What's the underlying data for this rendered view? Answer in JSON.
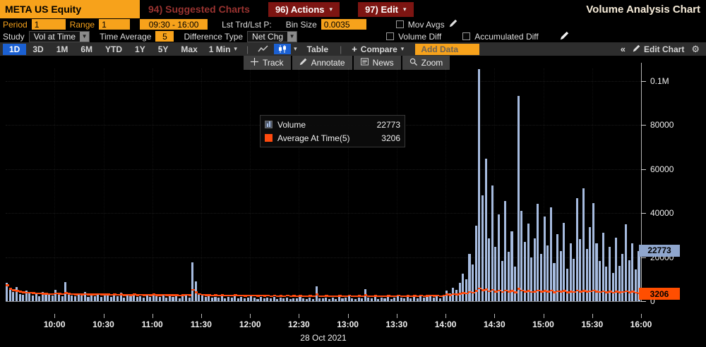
{
  "titlebar": {
    "security": "META US Equity",
    "suggested": "94) Suggested Charts",
    "actions": "96) Actions",
    "edit": "97) Edit",
    "title": "Volume Analysis Chart"
  },
  "controls": {
    "period_label": "Period",
    "period_value": "1",
    "range_label": "Range",
    "range_value": "1",
    "time_range": "09:30 - 16:00",
    "lst_trd_label": "Lst Trd/Lst P:",
    "bin_size_label": "Bin Size",
    "bin_size_value": "0.0035",
    "mov_avgs_label": "Mov Avgs",
    "study_label": "Study",
    "study_value": "Vol at Time",
    "time_average_label": "Time Average",
    "time_average_value": "5",
    "difference_type_label": "Difference Type",
    "difference_type_value": "Net Chg",
    "volume_diff_label": "Volume Diff",
    "accumulated_diff_label": "Accumulated Diff"
  },
  "tabbar": {
    "tabs": [
      "1D",
      "3D",
      "1M",
      "6M",
      "YTD",
      "1Y",
      "5Y",
      "Max"
    ],
    "selected_tab": "1D",
    "interval": "1 Min",
    "table_label": "Table",
    "compare_label": "Compare",
    "add_data_label": "Add Data",
    "edit_chart_label": "Edit Chart"
  },
  "chart_toolbar": {
    "track": "Track",
    "annotate": "Annotate",
    "news": "News",
    "zoom": "Zoom"
  },
  "legend": {
    "volume_label": "Volume",
    "volume_value": "22773",
    "avg_label": "Average At Time(5)",
    "avg_value": "3206"
  },
  "colors": {
    "amber": "#f7a21b",
    "selected_blue": "#1b60d2",
    "volume_bar": "#a6bbdf",
    "avg_line": "#ff4a0e",
    "volume_badge_bg": "#8fa6cd",
    "avg_badge_bg": "#ff4e00"
  },
  "chart_data": {
    "type": "bar",
    "title": "Volume Analysis Chart",
    "date": "28 Oct 2021",
    "x_range": [
      "09:30",
      "16:00"
    ],
    "bin_minutes": 2,
    "ylim": [
      0,
      105400
    ],
    "grid": true,
    "legend_position": "upper-left-floating",
    "y_ticks": [
      {
        "label": "0.1M",
        "value": 100000
      },
      {
        "label": "80000",
        "value": 80000
      },
      {
        "label": "60000",
        "value": 60000
      },
      {
        "label": "40000",
        "value": 40000
      },
      {
        "label": "20000",
        "value": 20000
      },
      {
        "label": "0",
        "value": 0
      }
    ],
    "x_ticks": [
      "10:00",
      "10:30",
      "11:00",
      "11:30",
      "12:00",
      "12:30",
      "13:00",
      "13:30",
      "14:00",
      "14:30",
      "15:00",
      "15:30",
      "16:00"
    ],
    "series": [
      {
        "name": "Volume",
        "color": "#a6bbdf",
        "last_value": 22773,
        "values": [
          8200,
          5400,
          4100,
          6500,
          3200,
          2800,
          4700,
          3500,
          2600,
          3900,
          2200,
          4300,
          2900,
          3400,
          2500,
          5200,
          3100,
          2400,
          8800,
          3600,
          2700,
          2100,
          3300,
          2600,
          4100,
          1900,
          2800,
          2300,
          3700,
          2000,
          3100,
          2500,
          1800,
          2900,
          2200,
          3800,
          1700,
          2600,
          2100,
          3200,
          1900,
          2400,
          1600,
          2800,
          2000,
          3500,
          2300,
          1800,
          2700,
          1500,
          2200,
          1900,
          2600,
          1400,
          2100,
          3000,
          1700,
          17800,
          8900,
          3400,
          2600,
          1800,
          2300,
          1500,
          2000,
          1700,
          2400,
          1300,
          1900,
          1600,
          2200,
          1400,
          1800,
          1200,
          1700,
          2100,
          1500,
          1100,
          1800,
          1300,
          1600,
          1200,
          1900,
          1000,
          1500,
          1300,
          1700,
          1100,
          1400,
          1200,
          1800,
          1300,
          1000,
          1600,
          1100,
          6800,
          1400,
          1200,
          1700,
          1000,
          1500,
          1100,
          1800,
          1200,
          1600,
          2200,
          1400,
          1100,
          1700,
          1300,
          5600,
          1500,
          1200,
          1800,
          1000,
          1600,
          1300,
          1900,
          1100,
          1500,
          2400,
          1600,
          1200,
          2000,
          1400,
          1800,
          1300,
          2200,
          1500,
          1900,
          2600,
          1700,
          2100,
          1400,
          2400,
          4800,
          3500,
          6200,
          5100,
          8400,
          12600,
          9800,
          21500,
          16800,
          34200,
          105400,
          48200,
          64800,
          28400,
          52600,
          24800,
          39500,
          18200,
          45600,
          22400,
          31800,
          15600,
          93200,
          41200,
          26800,
          35400,
          19800,
          28600,
          44200,
          21600,
          38400,
          25200,
          42800,
          17400,
          30600,
          22800,
          35600,
          14800,
          26400,
          19200,
          46800,
          28200,
          51400,
          23600,
          33800,
          44600,
          26200,
          18400,
          31200,
          15800,
          24600,
          12800,
          28800,
          16200,
          21400,
          34800,
          18600,
          26200,
          14400,
          22773
        ]
      },
      {
        "name": "Average At Time(5)",
        "color": "#ff4a0e",
        "last_value": 3206,
        "values": [
          6800,
          5200,
          4600,
          4200,
          3900,
          3700,
          3500,
          3400,
          3300,
          3200,
          3100,
          3000,
          3000,
          2900,
          2900,
          3100,
          3000,
          2900,
          3300,
          3000,
          2800,
          2700,
          2800,
          2700,
          2900,
          2600,
          2700,
          2600,
          2800,
          2600,
          2700,
          2600,
          2500,
          2600,
          2500,
          2700,
          2400,
          2500,
          2400,
          2600,
          2400,
          2500,
          2300,
          2500,
          2400,
          2600,
          2400,
          2300,
          2500,
          2300,
          2400,
          2300,
          2400,
          2200,
          2300,
          2500,
          2300,
          4800,
          3600,
          2800,
          2500,
          2300,
          2400,
          2200,
          2300,
          2200,
          2300,
          2100,
          2200,
          2100,
          2300,
          2100,
          2200,
          2000,
          2100,
          2200,
          2100,
          2000,
          2100,
          2000,
          2100,
          1900,
          2100,
          1900,
          2000,
          1900,
          2100,
          1900,
          2000,
          1900,
          2000,
          1900,
          1800,
          2000,
          1800,
          2600,
          1900,
          1800,
          2000,
          1800,
          1900,
          1800,
          2000,
          1800,
          1900,
          2100,
          1900,
          1800,
          2000,
          1900,
          2400,
          1900,
          1800,
          2000,
          1800,
          1900,
          1900,
          2000,
          1800,
          1900,
          2100,
          1900,
          1800,
          2000,
          1900,
          2000,
          1900,
          2100,
          1900,
          2000,
          2200,
          2000,
          2100,
          1900,
          2200,
          2600,
          2400,
          2800,
          2700,
          3000,
          3300,
          3100,
          3800,
          3500,
          4200,
          5400,
          4600,
          4900,
          4100,
          4700,
          4000,
          4400,
          3800,
          4500,
          3900,
          4200,
          3700,
          5200,
          4400,
          4000,
          4200,
          3800,
          4000,
          4400,
          3900,
          4300,
          4000,
          4400,
          3700,
          4100,
          3900,
          4200,
          3600,
          4000,
          3800,
          4400,
          4000,
          4300,
          3900,
          4100,
          4400,
          4000,
          3800,
          4100,
          3700,
          3900,
          3500,
          4000,
          3600,
          3800,
          4100,
          3700,
          3900,
          3400,
          3206
        ]
      }
    ]
  }
}
